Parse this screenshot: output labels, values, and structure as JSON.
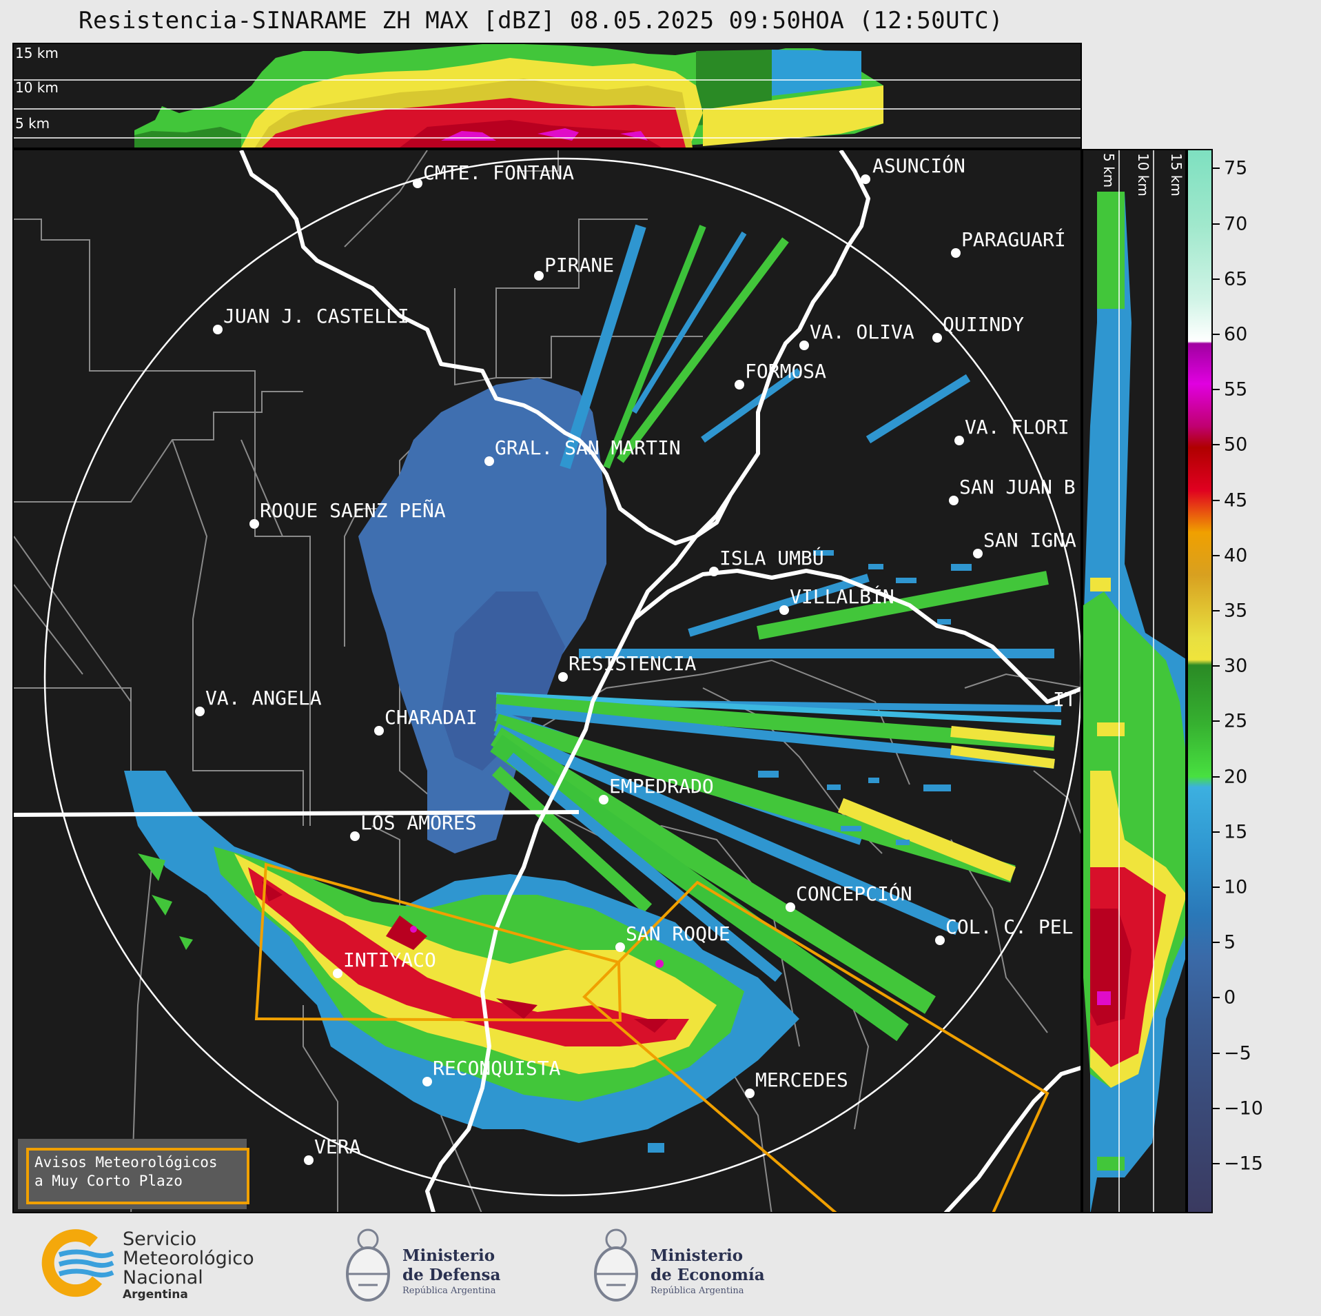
{
  "title": "Resistencia-SINARAME ZH MAX [dBZ] 08.05.2025 09:50HOA (12:50UTC)",
  "top_panel": {
    "height_labels": [
      "15 km",
      "10 km",
      "5 km"
    ]
  },
  "side_panel": {
    "height_labels": [
      "5 km",
      "10 km",
      "15 km"
    ]
  },
  "colorbar": {
    "ticks": [
      "75",
      "70",
      "65",
      "60",
      "55",
      "50",
      "45",
      "40",
      "35",
      "30",
      "25",
      "20",
      "15",
      "10",
      "5",
      "0",
      "−5",
      "−10",
      "−15"
    ],
    "range_dbz": [
      -20,
      77
    ]
  },
  "cities": {
    "cmte_fontana": "CMTE. FONTANA",
    "asuncion": "ASUNCIÓN",
    "pirane": "PIRANE",
    "paraguari": "PARAGUARÍ",
    "juan_castelli": "JUAN J. CASTELLI",
    "va_oliva": "VA. OLIVA",
    "quiindy": "QUIINDY",
    "formosa": "FORMOSA",
    "va_florida": "VA. FLORI",
    "gral_san_martin": "GRAL. SAN MARTIN",
    "san_juan_b": "SAN JUAN B",
    "roque_saenz_pena": "ROQUE SAENZ PEÑA",
    "san_ignacio": "SAN IGNA",
    "isla_umbu": "ISLA UMBÚ",
    "villalbin": "VILLALBÍN",
    "resistencia": "RESISTENCIA",
    "va_angela": "VA. ANGELA",
    "charadai": "CHARADAI",
    "it": "IT",
    "empedrado": "EMPEDRADO",
    "los_amores": "LOS AMORES",
    "concepcion": "CONCEPCIÓN",
    "col_pel": "COL. C. PEL",
    "san_roque": "SAN ROQUE",
    "intiyaco": "INTIYACO",
    "reconquista": "RECONQUISTA",
    "mercedes": "MERCEDES",
    "vera": "VERA"
  },
  "notice": {
    "line1": "Avisos Meteorológicos",
    "line2": "a Muy Corto Plazo"
  },
  "footer": {
    "smn_line1": "Servicio",
    "smn_line2": "Meteorológico",
    "smn_line3": "Nacional",
    "smn_line4": "Argentina",
    "defensa_line1": "Ministerio",
    "defensa_line2": "de Defensa",
    "defensa_line3": "República Argentina",
    "economia_line1": "Ministerio",
    "economia_line2": "de Economía",
    "economia_line3": "República Argentina"
  },
  "colors": {
    "warning_polygon": "#f0a000",
    "background": "#1b1b1b",
    "footer": "#e8e8e8"
  }
}
